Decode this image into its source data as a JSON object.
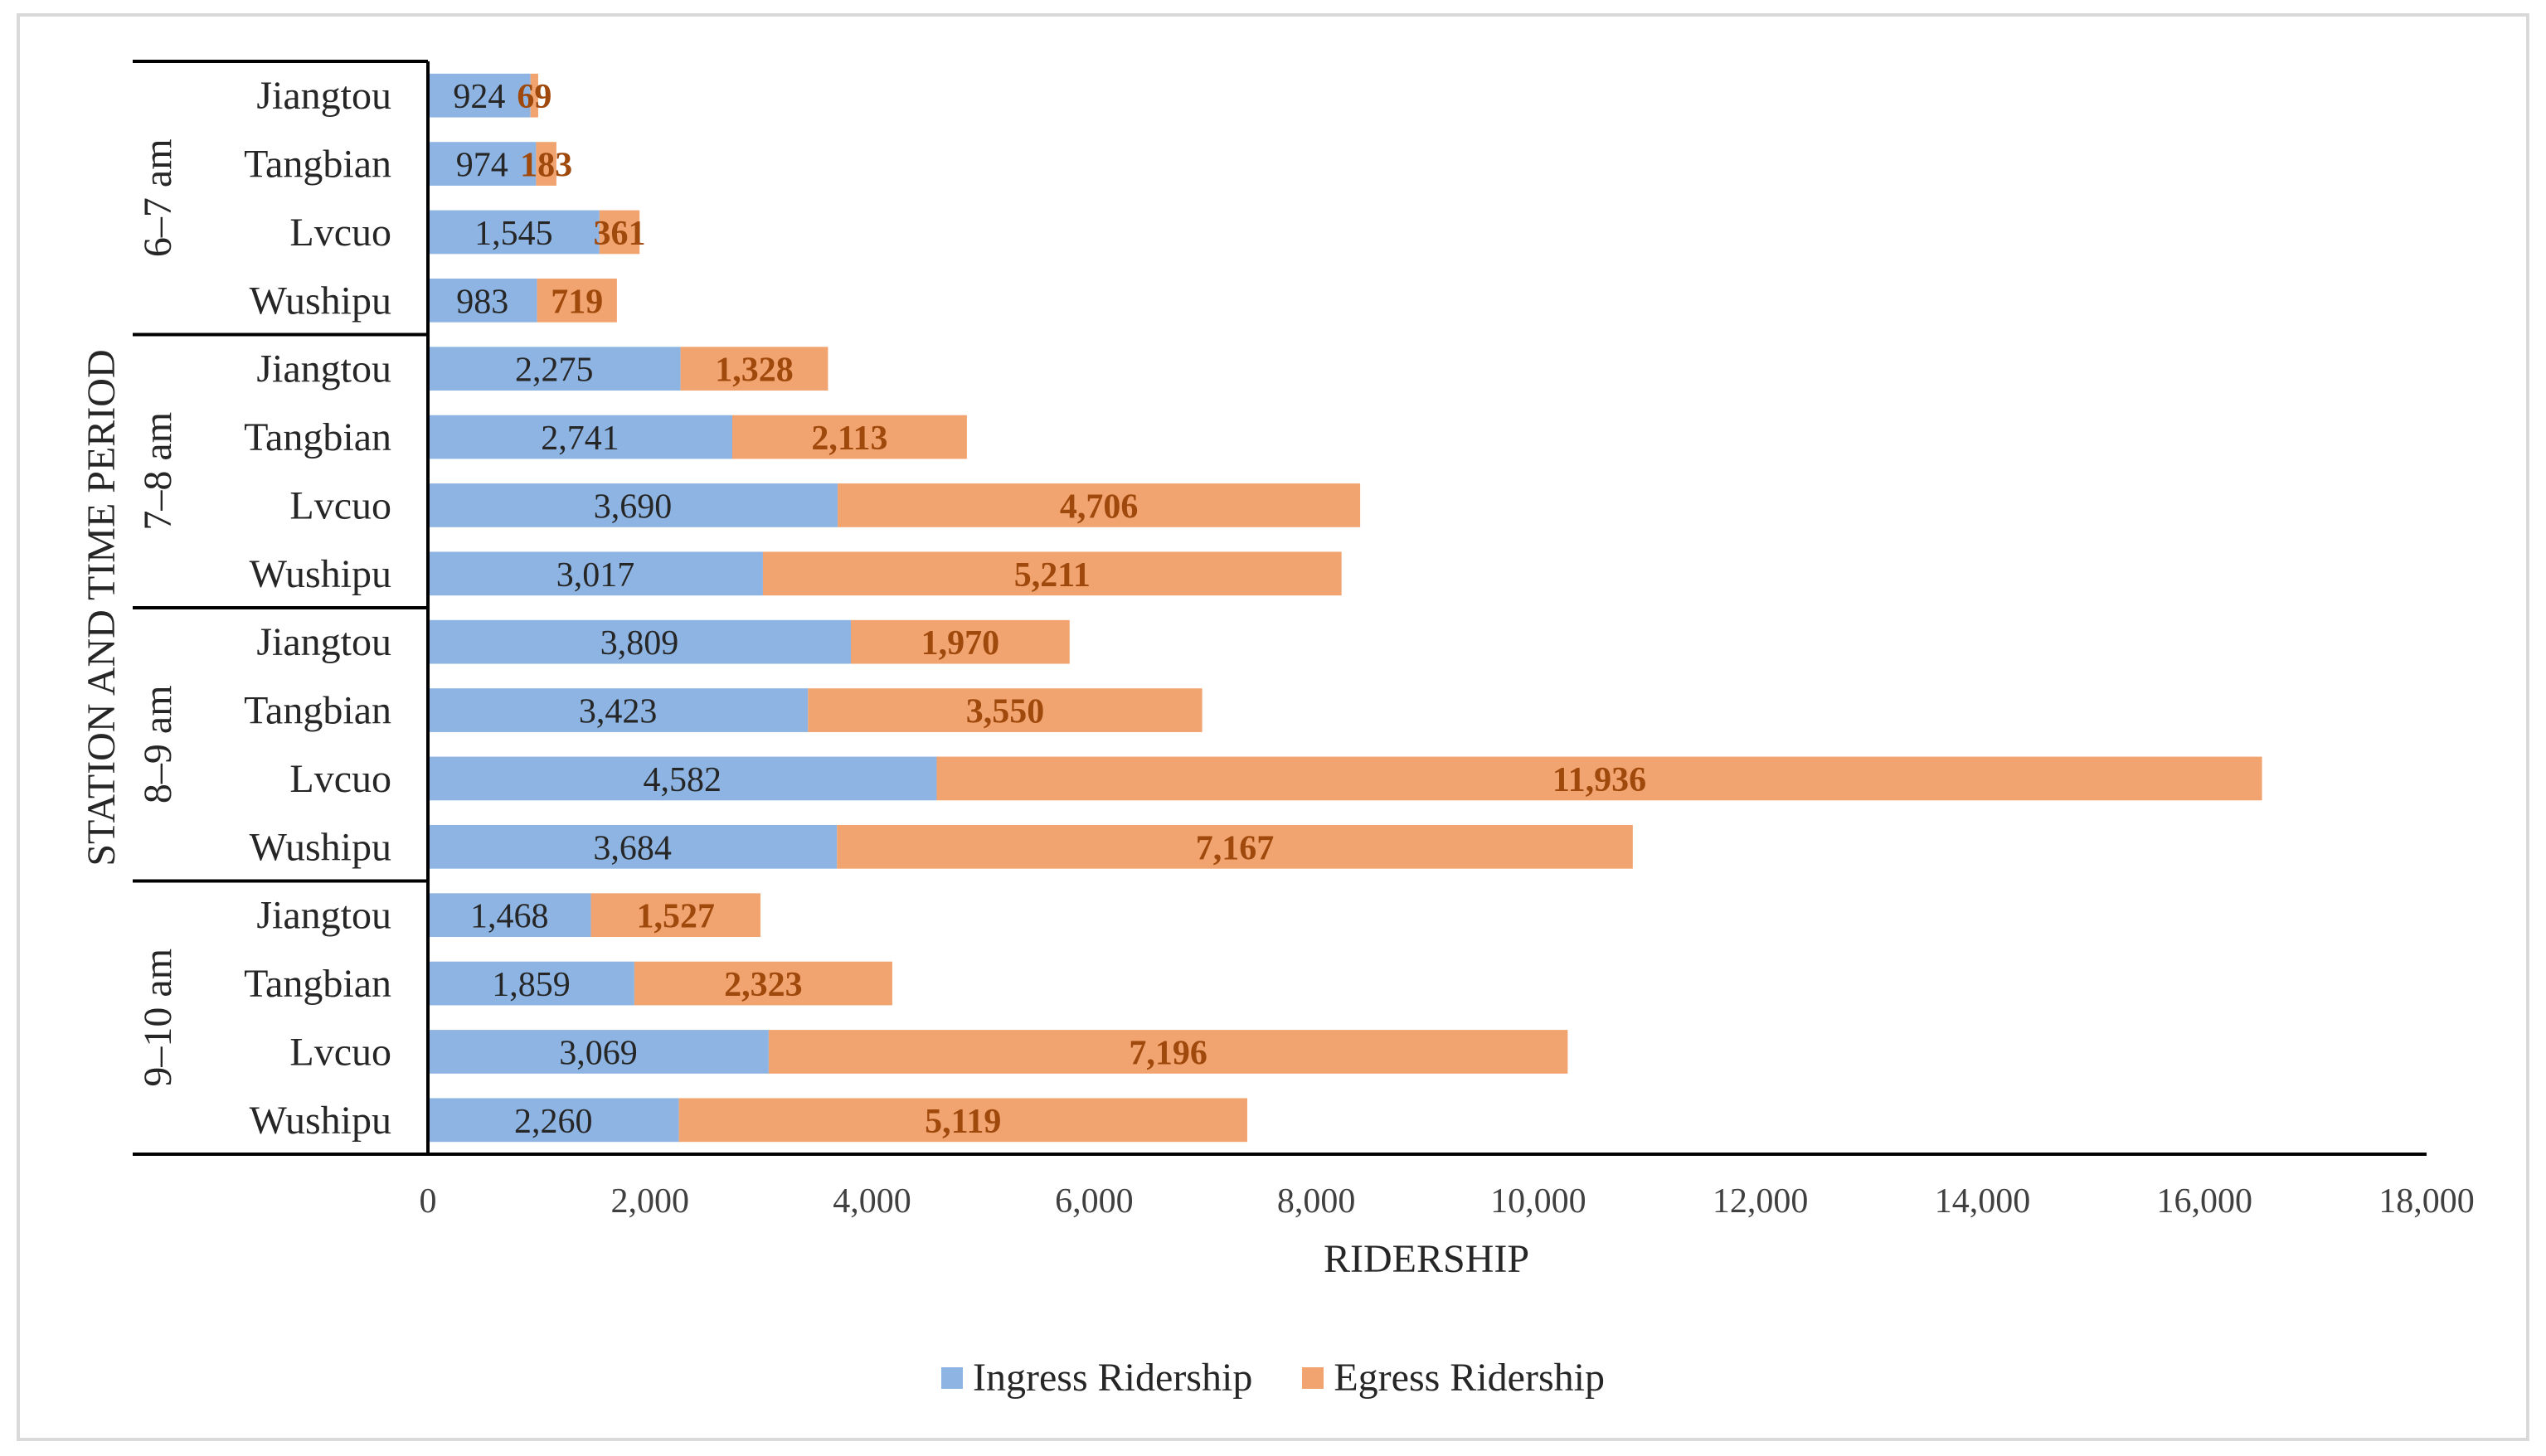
{
  "chart_data": {
    "type": "bar",
    "orientation": "horizontal",
    "stacked": true,
    "title": "",
    "ylabel": "STATION AND TIME PERIOD",
    "xlabel": "RIDERSHIP",
    "xlim": [
      0,
      18000
    ],
    "x_ticks": [
      "0",
      "2,000",
      "4,000",
      "6,000",
      "8,000",
      "10,000",
      "12,000",
      "14,000",
      "16,000",
      "18,000"
    ],
    "groups": [
      {
        "label": "6–7 am",
        "stations": [
          "Jiangtou",
          "Tangbian",
          "Lvcuo",
          "Wushipu"
        ],
        "ingress": [
          924,
          974,
          1545,
          983
        ],
        "egress": [
          69,
          183,
          361,
          719
        ],
        "ingress_labels": [
          "924",
          "974",
          "1,545",
          "983"
        ],
        "egress_labels": [
          "69",
          "183",
          "361",
          "719"
        ]
      },
      {
        "label": "7–8 am",
        "stations": [
          "Jiangtou",
          "Tangbian",
          "Lvcuo",
          "Wushipu"
        ],
        "ingress": [
          2275,
          2741,
          3690,
          3017
        ],
        "egress": [
          1328,
          2113,
          4706,
          5211
        ],
        "ingress_labels": [
          "2,275",
          "2,741",
          "3,690",
          "3,017"
        ],
        "egress_labels": [
          "1,328",
          "2,113",
          "4,706",
          "5,211"
        ]
      },
      {
        "label": "8–9 am",
        "stations": [
          "Jiangtou",
          "Tangbian",
          "Lvcuo",
          "Wushipu"
        ],
        "ingress": [
          3809,
          3423,
          4582,
          3684
        ],
        "egress": [
          1970,
          3550,
          11936,
          7167
        ],
        "ingress_labels": [
          "3,809",
          "3,423",
          "4,582",
          "3,684"
        ],
        "egress_labels": [
          "1,970",
          "3,550",
          "11,936",
          "7,167"
        ]
      },
      {
        "label": "9–10 am",
        "stations": [
          "Jiangtou",
          "Tangbian",
          "Lvcuo",
          "Wushipu"
        ],
        "ingress": [
          1468,
          1859,
          3069,
          2260
        ],
        "egress": [
          1527,
          2323,
          7196,
          5119
        ],
        "ingress_labels": [
          "1,468",
          "1,859",
          "3,069",
          "2,260"
        ],
        "egress_labels": [
          "1,527",
          "2,323",
          "7,196",
          "5,119"
        ]
      }
    ],
    "series": [
      {
        "name": "Ingress Ridership",
        "color": "#8db4e2"
      },
      {
        "name": "Egress Ridership",
        "color": "#f2a470"
      }
    ],
    "egress_label_color": "#a0490d",
    "legend_position": "bottom"
  }
}
